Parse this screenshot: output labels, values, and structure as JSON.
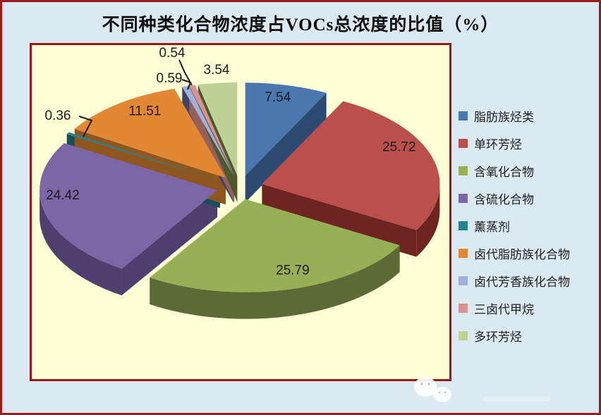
{
  "title": "不同种类化合物浓度占VOCs总浓度的比值（%）",
  "colors": {
    "page_background": "#DAE9F2",
    "plot_background": "#FFFFD6",
    "frame_border": "#9B1B1E",
    "label_text": "#1C1C1C",
    "legend_text": "#1F1F1F"
  },
  "chart_data": {
    "type": "pie",
    "style": "3d-exploded",
    "title": "不同种类化合物浓度占VOCs总浓度的比值（%）",
    "unit": "%",
    "legend_position": "right",
    "start_angle_deg": 0,
    "direction": "clockwise",
    "slices": [
      {
        "label": "脂肪族烃类",
        "value": 7.54,
        "color": "#4A78AE",
        "wall": "#2C4A70"
      },
      {
        "label": "单环芳烃",
        "value": 25.72,
        "color": "#BB4F4B",
        "wall": "#6E2522"
      },
      {
        "label": "含氧化合物",
        "value": 25.79,
        "color": "#97B056",
        "wall": "#5C6B35"
      },
      {
        "label": "含硫化合物",
        "value": 24.42,
        "color": "#7C66A6",
        "wall": "#4E3F6F"
      },
      {
        "label": "薰蒸剂",
        "value": 0.36,
        "color": "#27828F",
        "wall": "#17505A"
      },
      {
        "label": "卤代脂肪族化合物",
        "value": 11.51,
        "color": "#E28834",
        "wall": "#8F561D"
      },
      {
        "label": "卤代芳香族化合物",
        "value": 0.59,
        "color": "#A2B1DC",
        "wall": "#3F4766"
      },
      {
        "label": "三卤代甲烷",
        "value": 0.54,
        "color": "#D8928F",
        "wall": "#96605C"
      },
      {
        "label": "多环芳烃",
        "value": 3.54,
        "color": "#BED295",
        "wall": "#4D5930"
      }
    ]
  }
}
